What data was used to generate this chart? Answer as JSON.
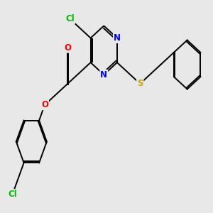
{
  "background_color": "#e8e8e8",
  "bond_color": "#000000",
  "atom_colors": {
    "Cl": "#00bb00",
    "O": "#ff0000",
    "N": "#0000ff",
    "S": "#ccaa00",
    "C": "#000000"
  },
  "font_size": 8.5,
  "figsize": [
    3.0,
    3.0
  ],
  "dpi": 100
}
